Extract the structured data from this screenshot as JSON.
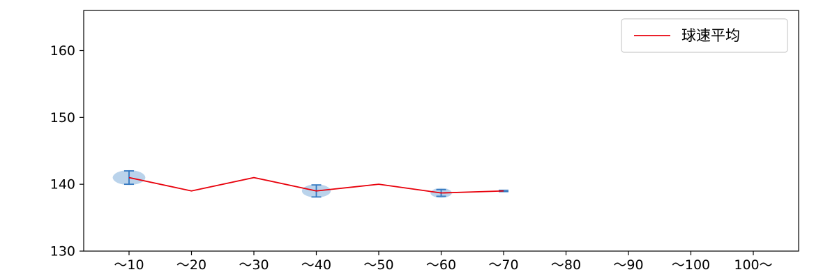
{
  "chart_data": {
    "type": "line",
    "title": "",
    "xlabel": "",
    "ylabel": "",
    "categories": [
      "～10",
      "～20",
      "～30",
      "～40",
      "～50",
      "～60",
      "～70",
      "～80",
      "～90",
      "～100",
      "100～"
    ],
    "series": [
      {
        "name": "球速平均",
        "values": [
          141,
          139,
          141,
          139,
          140,
          138.7,
          139,
          null,
          null,
          null,
          null
        ],
        "errors": [
          1.0,
          0,
          0,
          0.9,
          0,
          0.5,
          0.1,
          null,
          null,
          null,
          null
        ],
        "spread": [
          1.3,
          0,
          0,
          1.15,
          0,
          0.85,
          0,
          null,
          null,
          null,
          null
        ]
      }
    ],
    "ylim": [
      130,
      166
    ],
    "yticks": [
      130,
      140,
      150,
      160
    ],
    "grid": false,
    "legend": {
      "position": "upper right",
      "entries": [
        {
          "label": "球速平均",
          "color": "#e8000b",
          "marker": "line"
        }
      ]
    },
    "colors": {
      "line": "#e8000b",
      "error": "#3579c1",
      "violin_fill": "#aecbe8",
      "axis": "#000000",
      "legend_border": "#cccccc",
      "background": "#ffffff"
    }
  }
}
